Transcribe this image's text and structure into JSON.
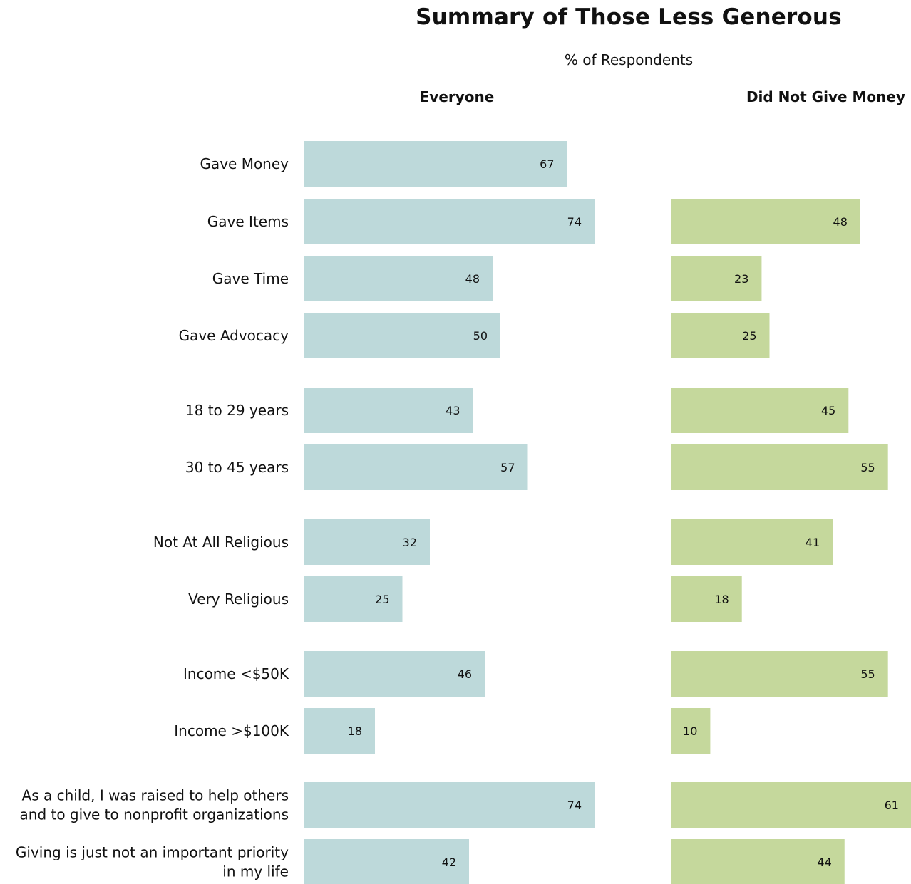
{
  "chart_data": {
    "type": "bar",
    "orientation": "horizontal",
    "title": "Summary of Those Less Generous",
    "subtitle": "% of Respondents",
    "categories": [
      [
        "Gave Money"
      ],
      [
        "Gave Items"
      ],
      [
        "Gave Time"
      ],
      [
        "Gave Advocacy"
      ],
      [
        "18 to 29 years"
      ],
      [
        "30 to 45 years"
      ],
      [
        "Not At All Religious"
      ],
      [
        "Very Religious"
      ],
      [
        "Income <$50K"
      ],
      [
        "Income >$100K"
      ],
      [
        "As a child, I was raised to help others",
        "and to give to nonprofit organizations"
      ],
      [
        "Giving is just not an important priority",
        "in my life"
      ]
    ],
    "series": [
      {
        "name": "Everyone",
        "color": "#bdd9da",
        "values": [
          67,
          74,
          48,
          50,
          43,
          57,
          32,
          25,
          46,
          18,
          74,
          42
        ]
      },
      {
        "name": "Did Not Give Money",
        "color": "#c5d89c",
        "values": [
          null,
          48,
          23,
          25,
          45,
          55,
          41,
          18,
          55,
          10,
          61,
          44
        ]
      }
    ],
    "xlim": [
      0,
      100
    ],
    "grid": false,
    "legend": "none"
  }
}
